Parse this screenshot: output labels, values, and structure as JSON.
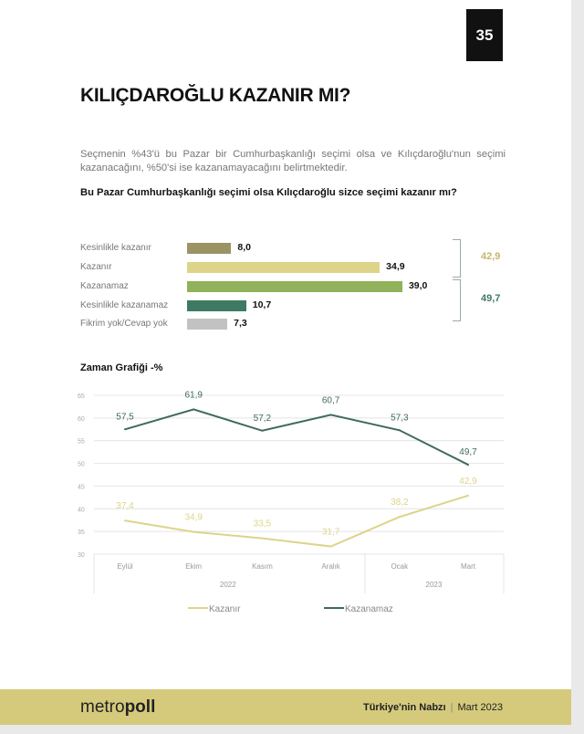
{
  "page_number": "35",
  "title": "KILIÇDAROĞLU KAZANIR MI?",
  "paragraph": "Seçmenin %43'ü bu Pazar bir Cumhurbaşkanlığı seçimi olsa ve Kılıçdaroğlu'nun seçimi kazanacağını, %50'si ise kazanamayacağını belirtmektedir.",
  "question": "Bu Pazar Cumhurbaşkanlığı seçimi olsa Kılıçdaroğlu sizce seçimi kazanır mı?",
  "chart_data": [
    {
      "type": "bar",
      "orientation": "horizontal",
      "categories": [
        "Kesinlikle kazanır",
        "Kazanır",
        "Kazanamaz",
        "Kesinlikle kazanamaz",
        "Fikrim yok/Cevap yok"
      ],
      "values": [
        8.0,
        34.9,
        39.0,
        10.7,
        7.3
      ],
      "value_labels": [
        "8,0",
        "34,9",
        "39,0",
        "10,7",
        "7,3"
      ],
      "colors": [
        "#9a9465",
        "#ddd48a",
        "#8fb25a",
        "#3e7a63",
        "#c2c2c2"
      ],
      "group_totals": [
        {
          "label": "42,9",
          "value": 42.9,
          "color": "#c6b66a"
        },
        {
          "label": "49,7",
          "value": 49.7,
          "color": "#3e7a63"
        }
      ]
    },
    {
      "type": "line",
      "title": "Zaman Grafiği -%",
      "categories": [
        "Eylül",
        "Ekim",
        "Kasım",
        "Aralık",
        "Ocak",
        "Mart"
      ],
      "year_groups": [
        {
          "label": "2022",
          "count": 4
        },
        {
          "label": "2023",
          "count": 2
        }
      ],
      "ylim": [
        30,
        65
      ],
      "yticks": [
        30,
        35,
        40,
        45,
        50,
        55,
        60,
        65
      ],
      "grid": true,
      "legend_position": "bottom",
      "series": [
        {
          "name": "Kazanır",
          "values": [
            37.4,
            34.9,
            33.5,
            31.7,
            38.2,
            42.9
          ],
          "labels": [
            "37,4",
            "34,9",
            "33,5",
            "31,7",
            "38,2",
            "42,9"
          ],
          "color": "#ddd48a"
        },
        {
          "name": "Kazanamaz",
          "values": [
            57.5,
            61.9,
            57.2,
            60.7,
            57.3,
            49.7
          ],
          "labels": [
            "57,5",
            "61,9",
            "57,2",
            "60,7",
            "57,3",
            "49,7"
          ],
          "color": "#3f6b58"
        }
      ]
    }
  ],
  "footer": {
    "logo_light": "metro",
    "logo_bold": "poll",
    "publication": "Türkiye'nin Nabzı",
    "date": "Mart 2023",
    "footer_color": "#d5ca7c"
  }
}
